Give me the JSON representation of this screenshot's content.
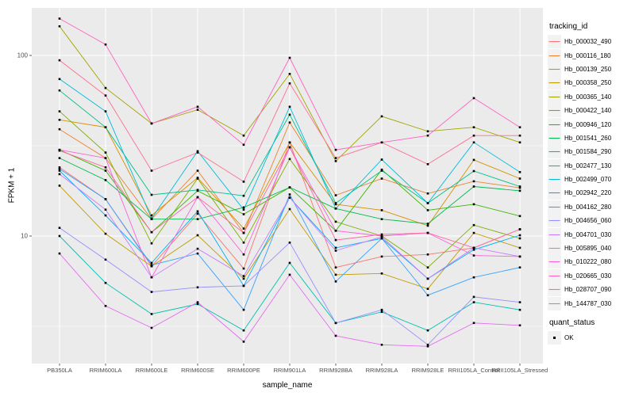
{
  "chart_data": {
    "type": "line",
    "title": "",
    "xlabel": "sample_name",
    "ylabel": "FPKM + 1",
    "y_scale": "log10",
    "ylim": [
      2.0,
      183
    ],
    "yticks": [
      10,
      100
    ],
    "y_minor": [
      3.162,
      31.62
    ],
    "grid": true,
    "panel_bg": "#EBEBEB",
    "grid_color": "#FFFFFF",
    "tick_label_color": "#4D4D4D",
    "marker": "black-square",
    "marker_color": "#000000",
    "legend_position": "right",
    "legend_title": "tracking_id",
    "legend2_title": "quant_status",
    "legend2_items": [
      {
        "label": "OK",
        "marker": "black-square"
      }
    ],
    "categories": [
      "PB350LA",
      "RRIM600LA",
      "RRIM600LE",
      "RRIM600SE",
      "RRIM600PE",
      "RRIM901LA",
      "RRIM928BA",
      "RRIM928LA",
      "RRIM928LE",
      "RRII105LA_Control",
      "RRII105LA_Stressed"
    ],
    "series": [
      {
        "name": "Hb_000032_490",
        "color": "#F8766D",
        "values": [
          24,
          16,
          6.8,
          13.3,
          6.6,
          33,
          6.7,
          7.7,
          7.9,
          8.6,
          10.9
        ]
      },
      {
        "name": "Hb_000116_180",
        "color": "#EA8331",
        "values": [
          39,
          27,
          12.4,
          23,
          10.4,
          42.5,
          16.8,
          20.8,
          17.2,
          20.1,
          18.5
        ]
      },
      {
        "name": "Hb_000139_250",
        "color": "#D89000",
        "values": [
          44,
          40,
          13,
          21,
          11,
          33,
          15,
          13.9,
          11.4,
          26.4,
          20.8
        ]
      },
      {
        "name": "Hb_000358_250",
        "color": "#C09B00",
        "values": [
          19,
          10.3,
          6.8,
          10.1,
          5.8,
          14.1,
          6.1,
          6.2,
          5.1,
          10.4,
          8.6
        ]
      },
      {
        "name": "Hb_000365_140",
        "color": "#A3A500",
        "values": [
          145,
          66,
          42,
          50,
          36,
          79,
          26,
          46,
          38,
          40,
          33
        ]
      },
      {
        "name": "Hb_000422_140",
        "color": "#7CAE00",
        "values": [
          49,
          29,
          9.1,
          20.8,
          9.2,
          26.7,
          12,
          10,
          6.7,
          11.5,
          9.7
        ]
      },
      {
        "name": "Hb_000946_120",
        "color": "#39B600",
        "values": [
          30,
          23,
          10.5,
          17.8,
          13.2,
          18.6,
          10.7,
          23.3,
          13.9,
          15,
          12.9
        ]
      },
      {
        "name": "Hb_001541_260",
        "color": "#00BB4E",
        "values": [
          27,
          20.4,
          12.4,
          12.4,
          14.4,
          18.6,
          14.2,
          12.4,
          11.7,
          18.8,
          17.8
        ]
      },
      {
        "name": "Hb_001584_290",
        "color": "#00C087",
        "values": [
          64,
          40,
          16.9,
          18,
          16.7,
          47,
          15.2,
          23,
          15.2,
          22.9,
          18.8
        ]
      },
      {
        "name": "Hb_002477_130",
        "color": "#00C0AF",
        "values": [
          10,
          5.5,
          3.7,
          4.2,
          3.0,
          7.1,
          3.3,
          3.8,
          3.0,
          4.3,
          3.9
        ]
      },
      {
        "name": "Hb_002499_070",
        "color": "#00BCD8",
        "values": [
          74,
          49,
          12.5,
          29.5,
          14,
          52,
          14.2,
          26.5,
          15.2,
          33,
          22.6
        ]
      },
      {
        "name": "Hb_002942_220",
        "color": "#00B0F6",
        "values": [
          23,
          13,
          7.1,
          13.7,
          5.3,
          16.3,
          8.6,
          9.7,
          5.8,
          8.4,
          10.1
        ]
      },
      {
        "name": "Hb_004162_280",
        "color": "#35A2FF",
        "values": [
          23.5,
          16,
          6.9,
          8,
          3.9,
          17,
          5.6,
          9.7,
          4.7,
          5.9,
          6.7
        ]
      },
      {
        "name": "Hb_004656_060",
        "color": "#9590FF",
        "values": [
          11.1,
          7.4,
          4.9,
          5.2,
          5.3,
          9.2,
          3.3,
          3.9,
          2.5,
          4.6,
          4.3
        ]
      },
      {
        "name": "Hb_004701_030",
        "color": "#C77CFF",
        "values": [
          22,
          14,
          5.9,
          8.5,
          6.0,
          16.3,
          8.3,
          9.9,
          5.8,
          8.6,
          7.7
        ]
      },
      {
        "name": "Hb_005895_040",
        "color": "#E76BF3",
        "values": [
          8.0,
          4.1,
          3.1,
          4.3,
          2.6,
          6.1,
          2.8,
          2.5,
          2.45,
          3.3,
          3.2
        ]
      },
      {
        "name": "Hb_010222_080",
        "color": "#FA62DB",
        "values": [
          30,
          27,
          5.9,
          16.4,
          7.9,
          31,
          10.7,
          10,
          10.4,
          7.8,
          7.7
        ]
      },
      {
        "name": "Hb_020665_030",
        "color": "#FF61C3",
        "values": [
          160,
          115,
          42,
          52,
          32,
          97,
          30,
          33,
          36,
          58,
          40
        ]
      },
      {
        "name": "Hb_028707_090",
        "color": "#FF67A4",
        "values": [
          29.7,
          24,
          10.5,
          16.4,
          10.4,
          31,
          9.5,
          10.2,
          10.4,
          8.6,
          10.9
        ]
      },
      {
        "name": "Hb_144787_030",
        "color": "#FF6C90",
        "values": [
          94,
          60,
          23,
          29,
          20,
          70,
          27,
          33,
          25,
          36,
          36
        ]
      }
    ]
  }
}
